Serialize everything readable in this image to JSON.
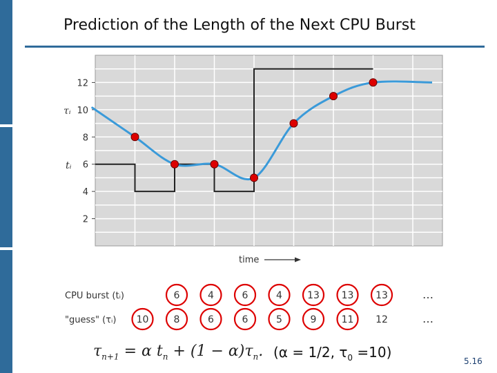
{
  "title": "Prediction of the Length of the Next CPU Burst",
  "slide_number": "5.16",
  "formula": {
    "lhs": "τ",
    "lhs_sub": "n+1",
    "eq": " = α t",
    "t_sub": "n",
    "mid": " + (1 − α)τ",
    "tau_sub": "n",
    "end": "."
  },
  "params": {
    "open": "(α = 1/2, τ",
    "sub": "0",
    "close": " =10)"
  },
  "colors": {
    "accent": "#2f6b9a",
    "grid_bg": "#d9d9d9",
    "guess_line": "#3a9ad9",
    "burst_line": "#222222",
    "marker": "#dd0000"
  },
  "chart_data": {
    "type": "line",
    "xlabel": "time",
    "ylim": [
      0,
      14
    ],
    "yticks": [
      2,
      4,
      6,
      8,
      10,
      12
    ],
    "y_series_labels": [
      "τᵢ",
      "tᵢ"
    ],
    "series": [
      {
        "values": [
          6,
          4,
          6,
          4,
          13,
          13,
          13
        ]
      },
      {
        "values": [
          10,
          8,
          6,
          6,
          5,
          9,
          11,
          12
        ]
      }
    ],
    "table": {
      "rows": [
        {
          "label": "CPU burst (tᵢ)",
          "values": [
            "6",
            "4",
            "6",
            "4",
            "13",
            "13",
            "13"
          ],
          "ellipsis": "…"
        },
        {
          "label": "\"guess\" (τᵢ)",
          "values": [
            "10",
            "8",
            "6",
            "6",
            "5",
            "9",
            "11",
            "12"
          ],
          "ellipsis": "…"
        }
      ]
    }
  }
}
